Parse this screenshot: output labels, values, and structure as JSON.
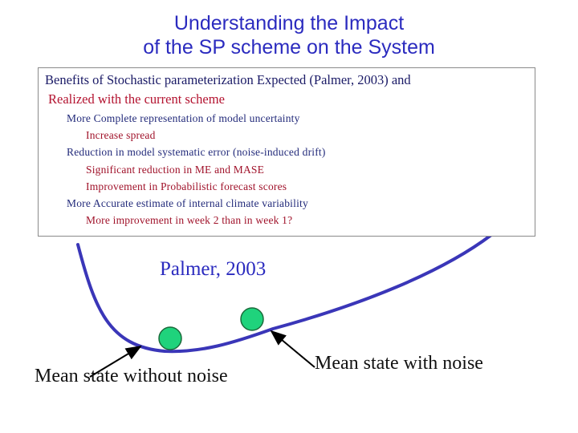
{
  "title": {
    "line1": "Understanding the Impact",
    "line2": "of the SP scheme on the System"
  },
  "box": {
    "heading_line1": "Benefits of Stochastic parameterization Expected (Palmer, 2003) and",
    "heading_line2": "Realized with the current scheme",
    "items": [
      {
        "text": "More Complete representation of model uncertainty",
        "level": 1
      },
      {
        "text": "Increase spread",
        "level": 2
      },
      {
        "text": "Reduction in model systematic error (noise-induced drift)",
        "level": 1
      },
      {
        "text": "Significant reduction in ME and MASE",
        "level": 2
      },
      {
        "text": "Improvement in Probabilistic forecast scores",
        "level": 2
      },
      {
        "text": "More Accurate estimate of internal climate variability",
        "level": 1
      },
      {
        "text": "More improvement in week 2 than in week 1?",
        "level": 2
      }
    ]
  },
  "figure": {
    "caption": "Palmer, 2003",
    "label_without_noise": "Mean state without noise",
    "label_with_noise": "Mean state with noise",
    "colors": {
      "curve": "#3a36b8",
      "ball": "#1fd37c",
      "ball_outline": "#1a6b3a",
      "arrow": "#000000",
      "title": "#2b2bbf"
    }
  }
}
